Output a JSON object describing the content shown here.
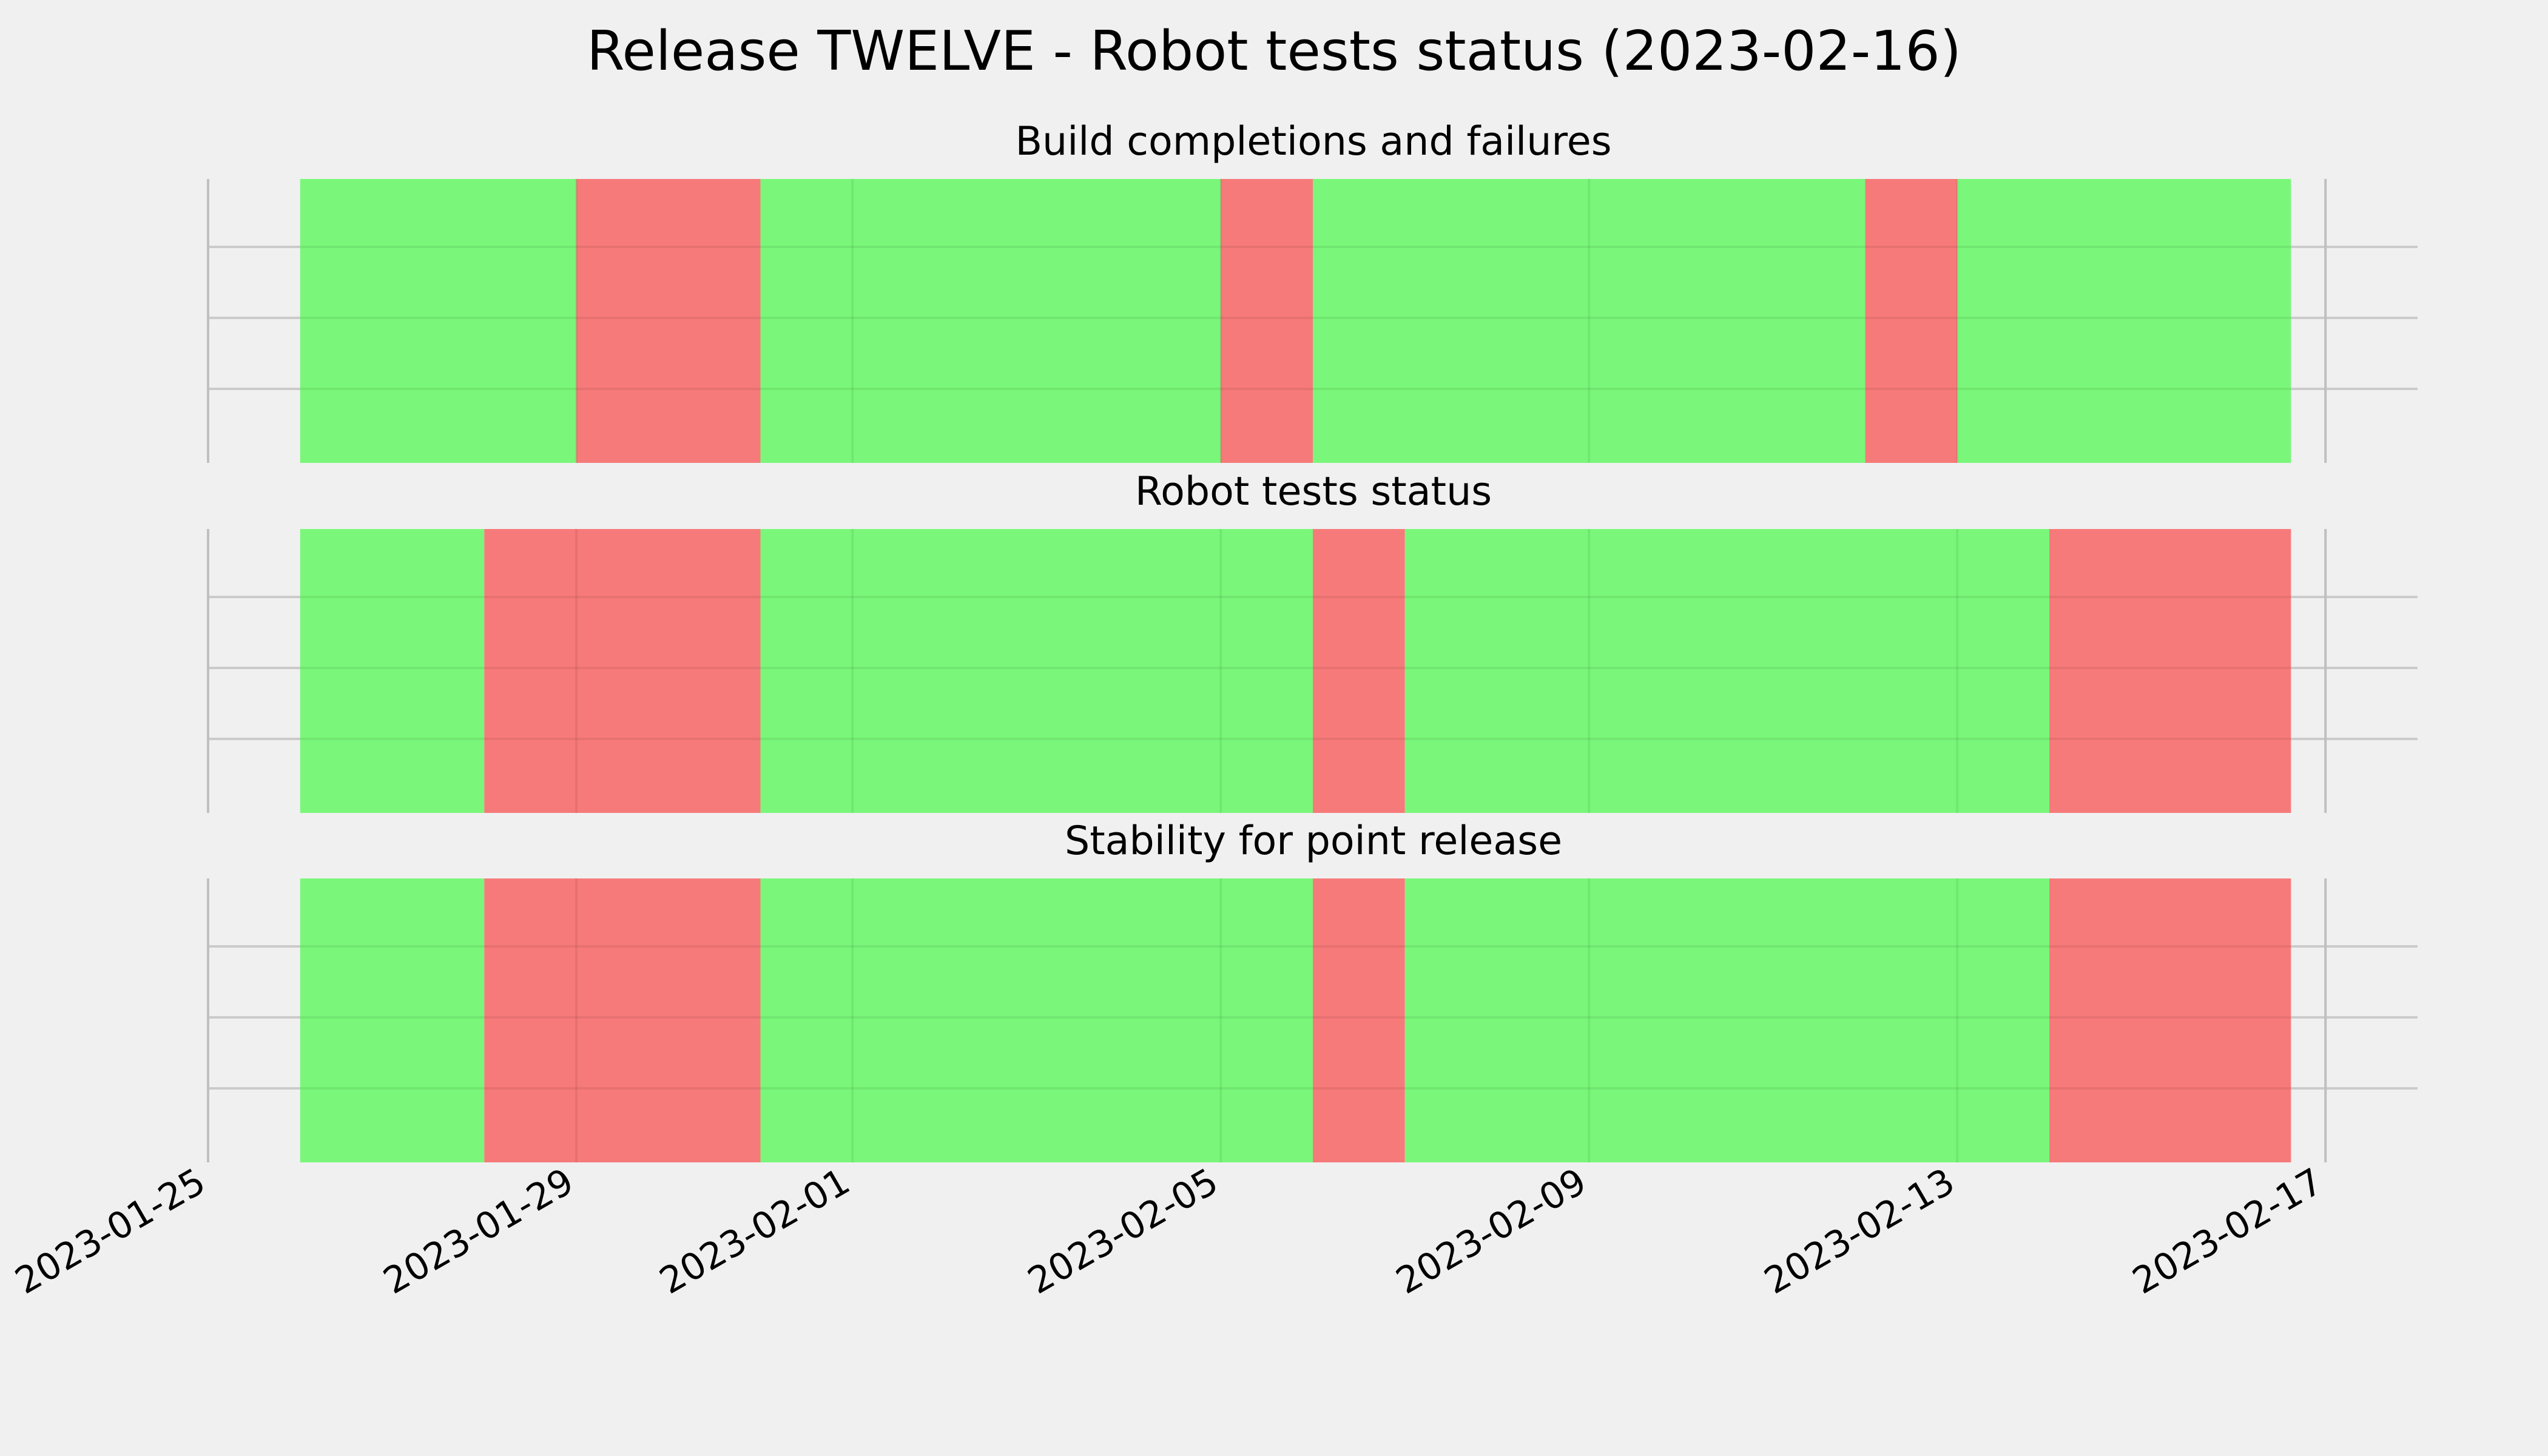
{
  "chart_data": {
    "type": "timeline",
    "title": "Release TWELVE - Robot tests status (2023-02-16)",
    "x_axis": {
      "range": [
        "2023-01-25",
        "2023-02-18"
      ],
      "ticks": [
        "2023-01-25",
        "2023-01-29",
        "2023-02-01",
        "2023-02-05",
        "2023-02-09",
        "2023-02-13",
        "2023-02-17"
      ],
      "tick_labels": [
        "2023-01-25",
        "2023-01-29",
        "2023-02-01",
        "2023-02-05",
        "2023-02-09",
        "2023-02-13",
        "2023-02-17"
      ]
    },
    "grid": true,
    "colors": {
      "pass": "#77f777",
      "fail": "#f77777",
      "background": "#f0f0f0",
      "grid": "#cbcbcb"
    },
    "panels": [
      {
        "title": "Build completions and failures",
        "segments": [
          {
            "start": "2023-01-26T00:00",
            "end": "2023-01-29T00:00",
            "status": "pass"
          },
          {
            "start": "2023-01-29T00:00",
            "end": "2023-01-31T00:00",
            "status": "fail"
          },
          {
            "start": "2023-01-31T00:00",
            "end": "2023-02-05T00:00",
            "status": "pass"
          },
          {
            "start": "2023-02-05T00:00",
            "end": "2023-02-06T00:00",
            "status": "fail"
          },
          {
            "start": "2023-02-06T00:00",
            "end": "2023-02-12T00:00",
            "status": "pass"
          },
          {
            "start": "2023-02-12T00:00",
            "end": "2023-02-13T00:00",
            "status": "fail"
          },
          {
            "start": "2023-02-13T00:00",
            "end": "2023-02-16T15:00",
            "status": "pass"
          }
        ]
      },
      {
        "title": "Robot tests status",
        "segments": [
          {
            "start": "2023-01-26T00:00",
            "end": "2023-01-28T00:00",
            "status": "pass"
          },
          {
            "start": "2023-01-28T00:00",
            "end": "2023-01-31T00:00",
            "status": "fail"
          },
          {
            "start": "2023-01-31T00:00",
            "end": "2023-02-06T00:00",
            "status": "pass"
          },
          {
            "start": "2023-02-06T00:00",
            "end": "2023-02-07T00:00",
            "status": "fail"
          },
          {
            "start": "2023-02-07T00:00",
            "end": "2023-02-14T00:00",
            "status": "pass"
          },
          {
            "start": "2023-02-14T00:00",
            "end": "2023-02-16T15:00",
            "status": "fail"
          }
        ]
      },
      {
        "title": "Stability for point release",
        "segments": [
          {
            "start": "2023-01-26T00:00",
            "end": "2023-01-28T00:00",
            "status": "pass"
          },
          {
            "start": "2023-01-28T00:00",
            "end": "2023-01-31T00:00",
            "status": "fail"
          },
          {
            "start": "2023-01-31T00:00",
            "end": "2023-02-06T00:00",
            "status": "pass"
          },
          {
            "start": "2023-02-06T00:00",
            "end": "2023-02-07T00:00",
            "status": "fail"
          },
          {
            "start": "2023-02-07T00:00",
            "end": "2023-02-14T00:00",
            "status": "pass"
          },
          {
            "start": "2023-02-14T00:00",
            "end": "2023-02-16T15:00",
            "status": "fail"
          }
        ]
      }
    ]
  }
}
